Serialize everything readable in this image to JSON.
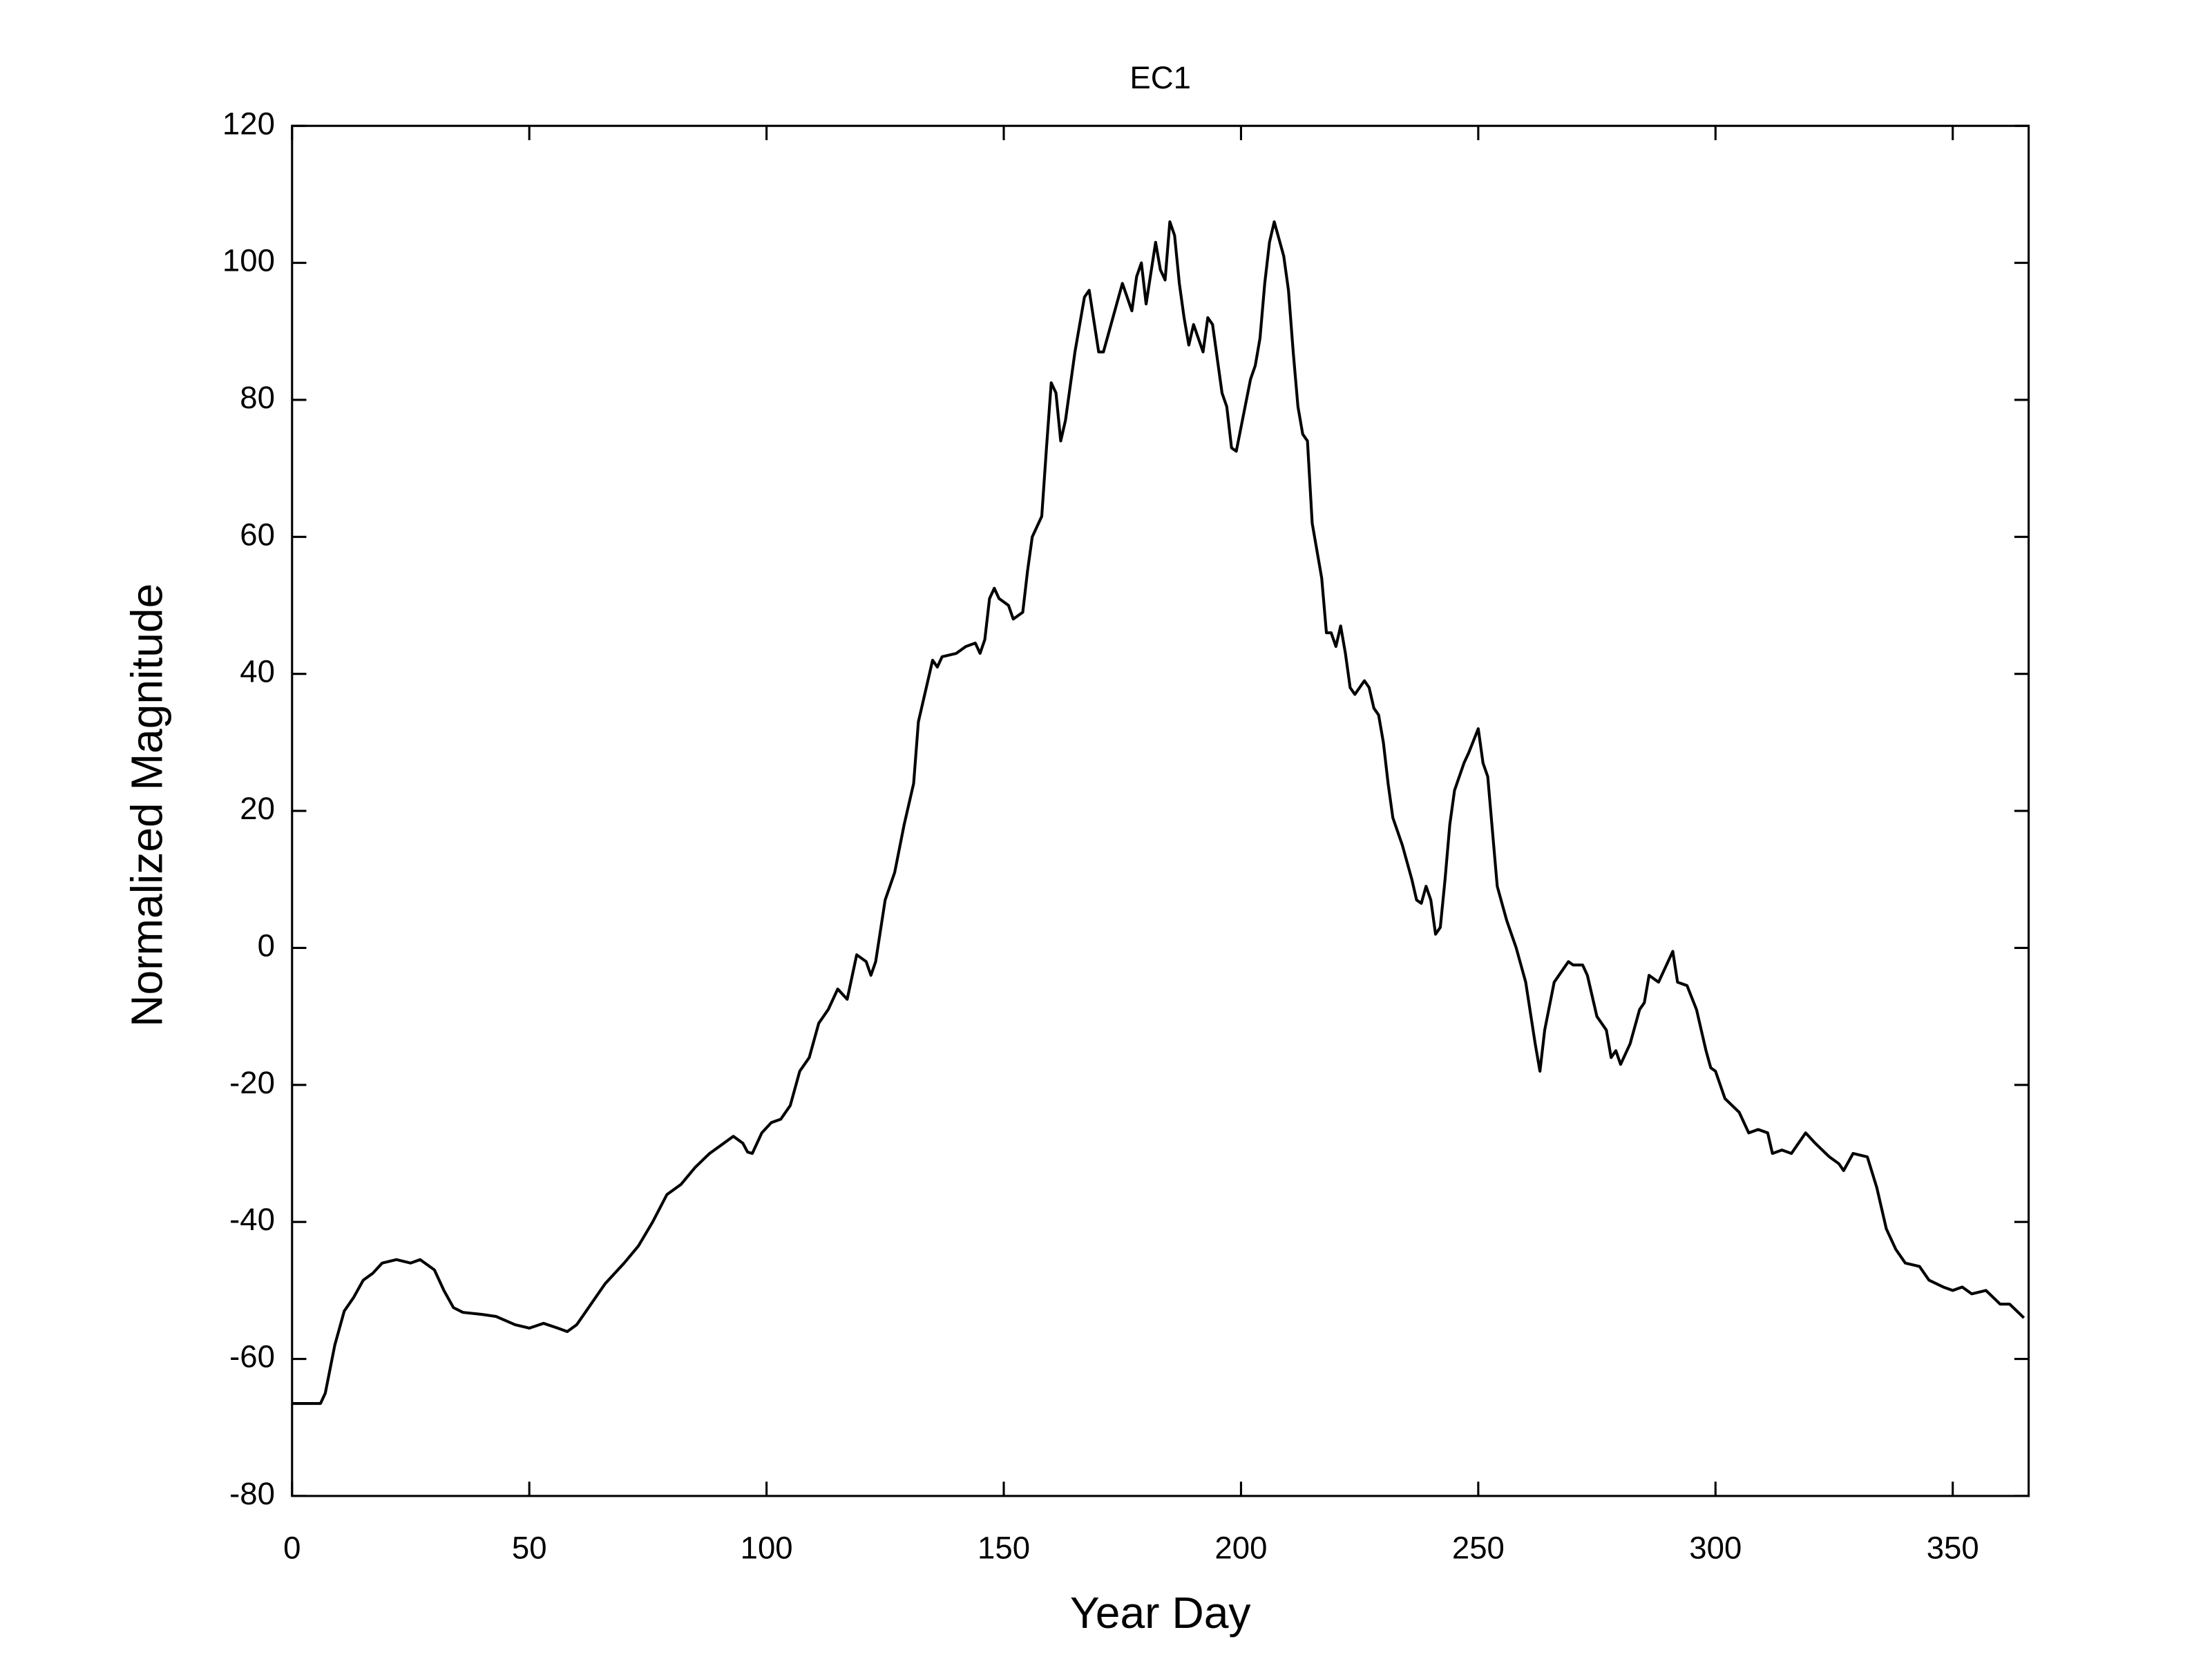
{
  "chart_data": {
    "type": "line",
    "title": "EC1",
    "xlabel": "Year Day",
    "ylabel": "Normalized Magnitude",
    "color": "#000000",
    "xlim": [
      0,
      366
    ],
    "xticks": [
      0,
      50,
      100,
      150,
      200,
      250,
      300,
      350
    ],
    "ylim": [
      -80,
      120
    ],
    "yticks": [
      -80,
      -60,
      -40,
      -20,
      0,
      20,
      40,
      60,
      80,
      100,
      120
    ],
    "grid": false,
    "x": [
      0,
      6,
      7,
      9,
      11,
      13,
      15,
      17,
      19,
      22,
      25,
      27,
      30,
      32,
      34,
      36,
      40,
      43,
      47,
      50,
      53,
      56,
      58,
      60,
      63,
      66,
      70,
      73,
      76,
      79,
      82,
      85,
      88,
      91,
      93,
      95,
      96,
      97,
      99,
      101,
      103,
      105,
      107,
      109,
      111,
      113,
      115,
      117,
      119,
      121,
      122,
      123,
      125,
      127,
      129,
      131,
      132,
      134,
      135,
      136,
      137,
      140,
      142,
      144,
      145,
      146,
      147,
      148,
      149,
      151,
      152,
      154,
      155,
      156,
      158,
      159,
      160,
      161,
      162,
      163,
      165,
      167,
      168,
      170,
      171,
      173,
      175,
      177,
      178,
      179,
      180,
      182,
      183,
      184,
      185,
      186,
      187,
      188,
      189,
      190,
      192,
      193,
      194,
      195,
      196,
      197,
      198,
      199,
      200,
      202,
      203,
      204,
      205,
      206,
      207,
      209,
      210,
      211,
      212,
      213,
      214,
      215,
      217,
      218,
      219,
      220,
      221,
      222,
      223,
      224,
      226,
      227,
      228,
      229,
      230,
      231,
      232,
      234,
      236,
      237,
      238,
      239,
      240,
      241,
      242,
      243,
      244,
      245,
      247,
      248,
      250,
      251,
      252,
      254,
      256,
      258,
      260,
      262,
      263,
      264,
      266,
      268,
      269,
      270,
      272,
      273,
      275,
      277,
      278,
      279,
      280,
      282,
      284,
      285,
      286,
      288,
      289,
      291,
      292,
      294,
      296,
      298,
      299,
      300,
      302,
      305,
      307,
      309,
      311,
      312,
      314,
      316,
      319,
      321,
      324,
      326,
      327,
      329,
      332,
      334,
      336,
      338,
      340,
      343,
      345,
      348,
      350,
      352,
      354,
      357,
      360,
      362,
      365
    ],
    "values": [
      -66.5,
      -66.5,
      -65,
      -58,
      -53,
      -51,
      -48.5,
      -47.5,
      -46,
      -45.5,
      -46,
      -45.5,
      -47,
      -50,
      -52.5,
      -53.2,
      -53.5,
      -53.8,
      -55,
      -55.5,
      -54.8,
      -55.5,
      -56,
      -55,
      -52,
      -49,
      -46,
      -43.5,
      -40,
      -36,
      -34.5,
      -32,
      -30,
      -28.5,
      -27.5,
      -28.5,
      -29.8,
      -30,
      -27,
      -25.5,
      -25,
      -23,
      -18,
      -16,
      -11,
      -9,
      -6,
      -7.5,
      -1,
      -2,
      -4,
      -2,
      7,
      11,
      18,
      24,
      33,
      39,
      42,
      41,
      42.5,
      43,
      44,
      44.5,
      43,
      45,
      51,
      52.5,
      51,
      50,
      48,
      49,
      55,
      60,
      63,
      73,
      82.5,
      81,
      74,
      77,
      87,
      95,
      96,
      87,
      87,
      92,
      97,
      93,
      98,
      100,
      94,
      103,
      99,
      97.5,
      106,
      104,
      97,
      92,
      88,
      91,
      87,
      92,
      91,
      86,
      81,
      79,
      73,
      72.5,
      76,
      83,
      85,
      89,
      97,
      103,
      106,
      101,
      96,
      87,
      79,
      75,
      74,
      62,
      54,
      46,
      46,
      44,
      47,
      43,
      38,
      37,
      39,
      38,
      35,
      34,
      30,
      24,
      19,
      15,
      10,
      7,
      6.5,
      9,
      7,
      2,
      3,
      10,
      18,
      23,
      27,
      28.5,
      32,
      27,
      25,
      9,
      4,
      0,
      -5,
      -14,
      -18,
      -12,
      -5,
      -3,
      -2,
      -2.5,
      -2.5,
      -4,
      -10,
      -12,
      -16,
      -15,
      -17,
      -14,
      -9,
      -8,
      -4,
      -5,
      -3.5,
      -0.5,
      -5,
      -5.5,
      -9,
      -15,
      -17.5,
      -18,
      -22,
      -24,
      -27,
      -26.5,
      -27,
      -30,
      -29.5,
      -30,
      -27,
      -28.5,
      -30.5,
      -31.5,
      -32.5,
      -30,
      -30.5,
      -35,
      -41,
      -44,
      -46,
      -46.5,
      -48.5,
      -49.5,
      -50,
      -49.5,
      -50.5,
      -50,
      -52,
      -52,
      -54
    ]
  }
}
